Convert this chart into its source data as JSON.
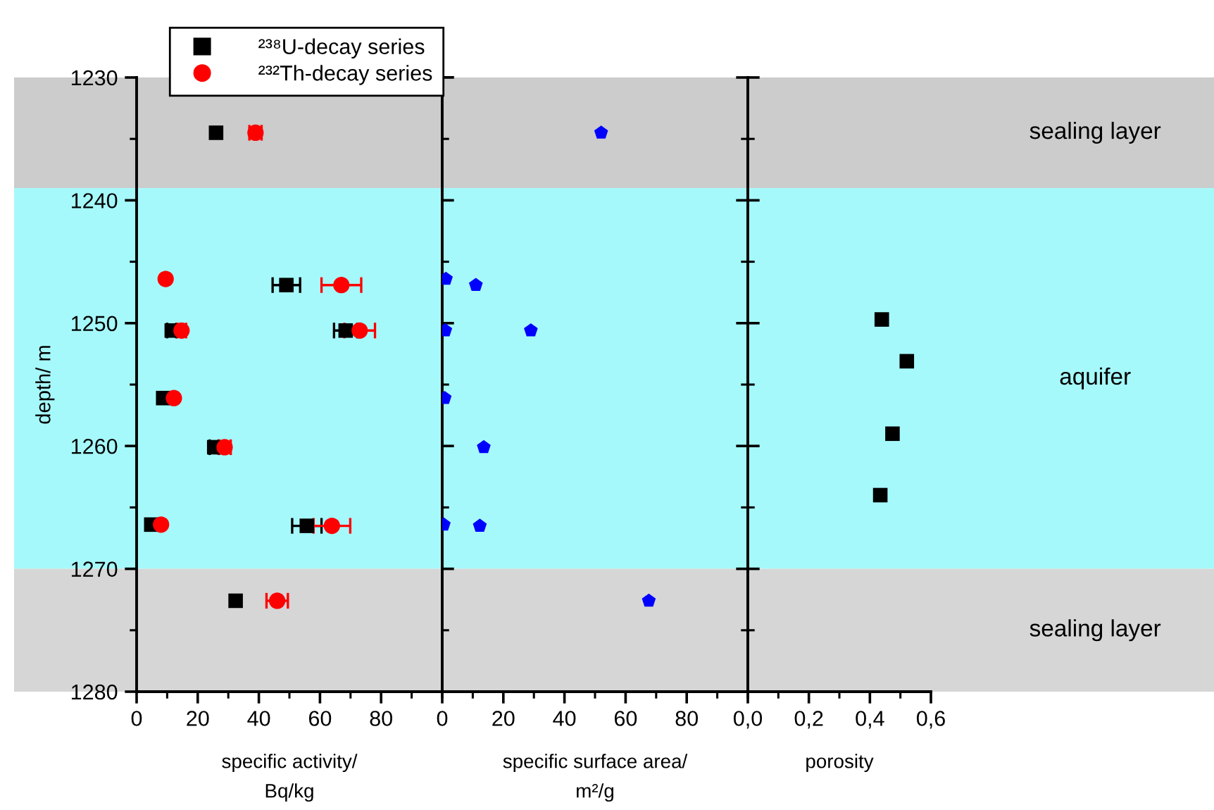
{
  "chart_data": [
    {
      "type": "scatter",
      "xlabel": "specific activity/\nBq/kg",
      "ylabel": "depth/ m",
      "xlim": [
        0,
        100
      ],
      "xticks": [
        0,
        20,
        40,
        60,
        80
      ],
      "ylim": [
        1280,
        1230
      ],
      "yticks": [
        1230,
        1240,
        1250,
        1260,
        1270,
        1280
      ],
      "legend": "top",
      "bands": [
        {
          "axis": "y",
          "from": 1230,
          "to": 1239,
          "color": "#cccccc"
        },
        {
          "axis": "y",
          "from": 1239,
          "to": 1270,
          "color": "#a6f9fb"
        },
        {
          "axis": "y",
          "from": 1270,
          "to": 1280,
          "color": "#d6d6d6"
        }
      ],
      "series": [
        {
          "name": "²³⁸U-decay series",
          "color": "#000000",
          "marker": "square",
          "x": [
            26,
            null,
            49,
            11.5,
            68.4,
            8.7,
            25.4,
            4.8,
            55.7,
            32.4
          ],
          "values": [
            1234.5,
            null,
            1246.9,
            1250.6,
            1250.6,
            1256.1,
            1260.1,
            1266.4,
            1266.5,
            1272.6
          ],
          "xerrors": [
            null,
            null,
            4.5,
            1.5,
            3.8,
            null,
            1.5,
            null,
            4.8,
            null
          ]
        },
        {
          "name": "²³²Th-decay series",
          "color": "#ff0000",
          "marker": "circle",
          "x": [
            38.9,
            9.5,
            67,
            14.7,
            73,
            12.2,
            28.8,
            8,
            63.9,
            46
          ],
          "values": [
            1234.5,
            1246.4,
            1246.9,
            1250.6,
            1250.6,
            1256.1,
            1260.1,
            1266.4,
            1266.5,
            1272.6
          ],
          "xerrors": [
            2,
            null,
            6.5,
            1.5,
            5,
            null,
            2,
            null,
            6,
            3.5
          ]
        }
      ]
    },
    {
      "type": "scatter",
      "xlabel": "specific surface area/\nm²/g",
      "xlim": [
        0,
        100
      ],
      "xticks": [
        0,
        20,
        40,
        60,
        80
      ],
      "ylim": [
        1280,
        1230
      ],
      "yticks": [
        1230,
        1240,
        1250,
        1260,
        1270,
        1280
      ],
      "tick_labels": "x",
      "bands": [
        {
          "axis": "y",
          "from": 1230,
          "to": 1239,
          "color": "#cccccc"
        },
        {
          "axis": "y",
          "from": 1239,
          "to": 1270,
          "color": "#a6f9fb"
        },
        {
          "axis": "y",
          "from": 1270,
          "to": 1280,
          "color": "#d6d6d6"
        }
      ],
      "series": [
        {
          "color": "#0000ff",
          "x": [
            52,
            1.2,
            11,
            1,
            29,
            0.8,
            13.6,
            0.5,
            12.3,
            67.6
          ],
          "values": [
            1234.5,
            1246.4,
            1246.9,
            1250.6,
            1250.6,
            1256.1,
            1260.1,
            1266.4,
            1266.5,
            1272.6
          ]
        }
      ]
    },
    {
      "type": "scatter",
      "xlabel": "porosity",
      "xlim": [
        0,
        0.6
      ],
      "xticks": [
        {
          "value": 0,
          "label": "0,0"
        },
        {
          "value": 0.2,
          "label": "0,2"
        },
        {
          "value": 0.4,
          "label": "0,4"
        },
        {
          "value": 0.6,
          "label": "0,6"
        }
      ],
      "ylim": [
        1280,
        1230
      ],
      "yticks": [
        1230,
        1240,
        1250,
        1260,
        1270,
        1280
      ],
      "tick_labels": "x",
      "bands": [
        {
          "axis": "y",
          "from": 1230,
          "to": 1239,
          "color": "#cccccc",
          "label": "sealing layer"
        },
        {
          "axis": "y",
          "from": 1239,
          "to": 1270,
          "color": "#a6f9fb",
          "label": "aquifer"
        },
        {
          "axis": "y",
          "from": 1270,
          "to": 1280,
          "color": "#d6d6d6",
          "label": "sealing layer"
        }
      ],
      "series": [
        {
          "color": "#000000",
          "marker": "square",
          "x": [
            0.439,
            0.521,
            0.474,
            0.434
          ],
          "values": [
            1249.7,
            1253.1,
            1259.0,
            1264.0
          ]
        }
      ]
    }
  ]
}
